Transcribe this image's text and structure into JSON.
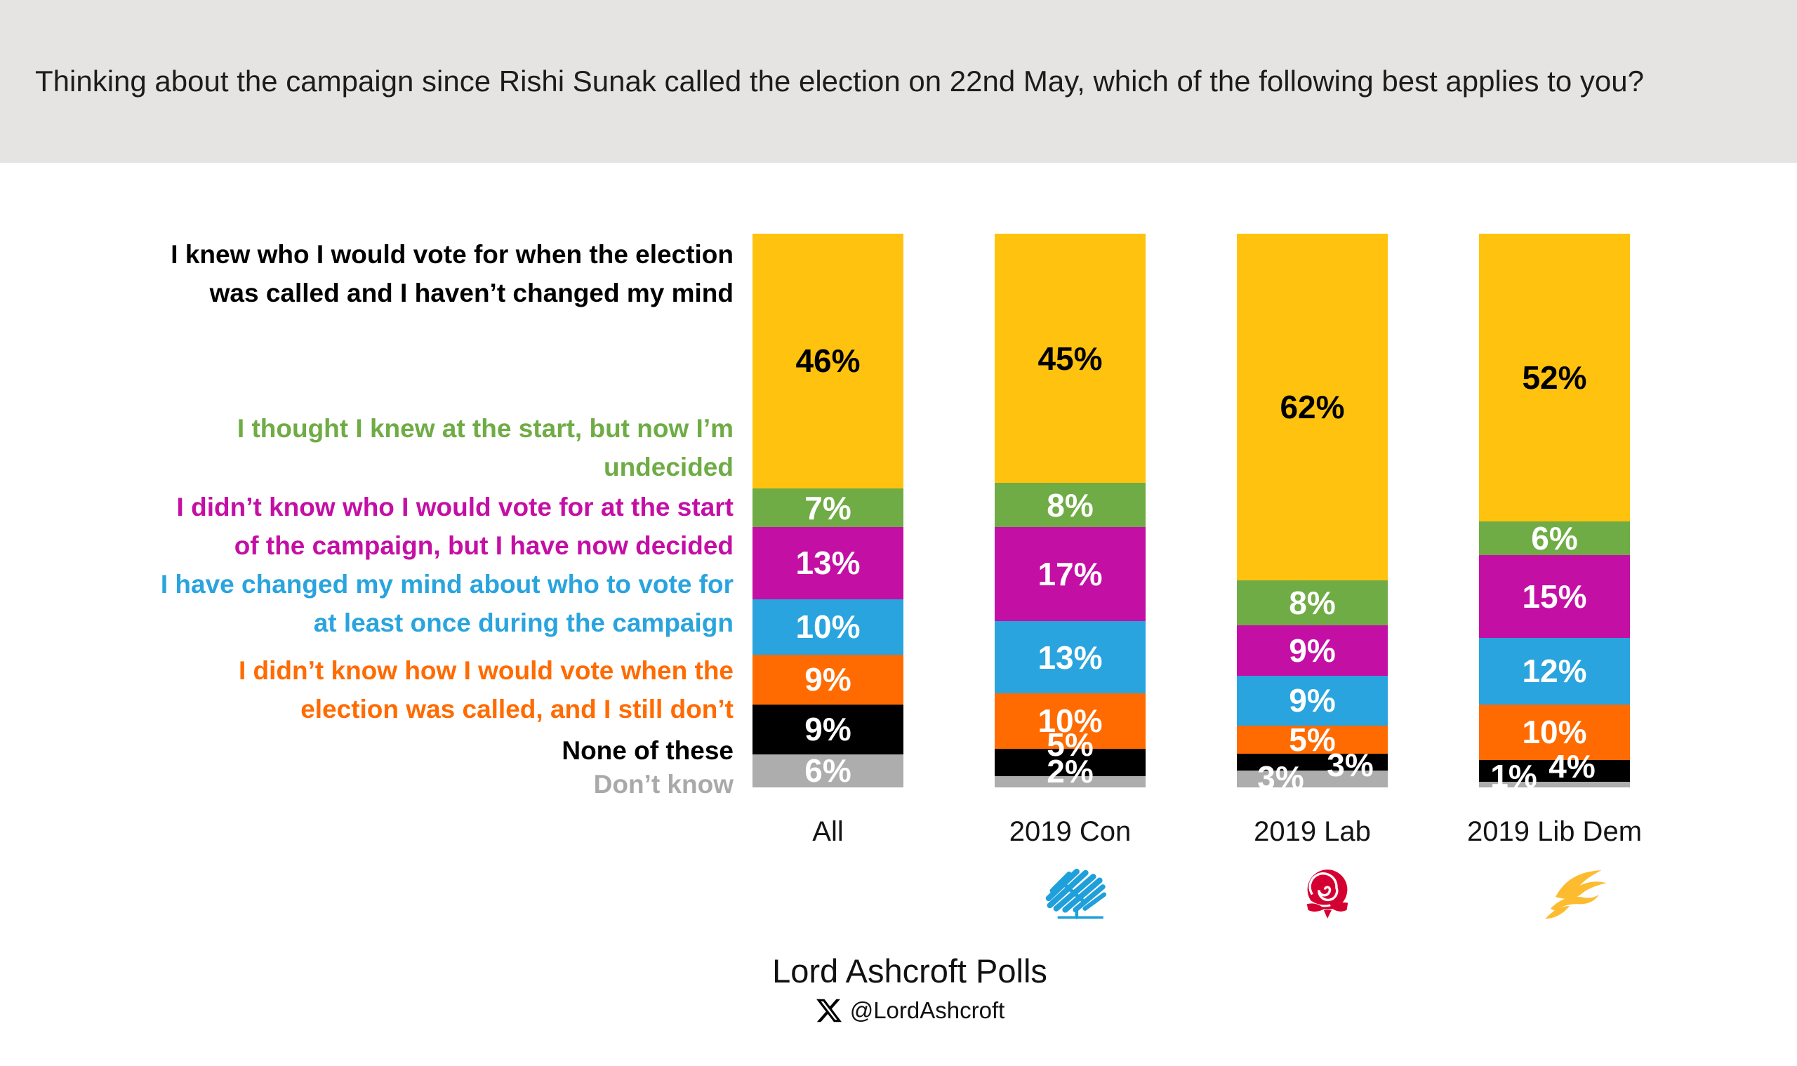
{
  "title": "Thinking about the campaign since Rishi Sunak called the election on 22nd May, which of the following best applies to you?",
  "header": {
    "background": "#E6E4E3"
  },
  "chart_data": {
    "type": "bar",
    "variant": "stacked-column-100",
    "unit": "%",
    "ylim": [
      0,
      100
    ],
    "gridlines": false,
    "value_labels": "inside",
    "legend_position": "left",
    "categories": [
      "All",
      "2019 Con",
      "2019 Lab",
      "2019 Lib Dem"
    ],
    "series": [
      {
        "name": "I knew who I would vote for when the election was called and I haven’t changed my mind",
        "name_lines": [
          "I knew who I would vote for when the election",
          "was called and I haven’t changed my mind"
        ],
        "color": "#FFC20E",
        "label_color": "#000000",
        "value_text_color": "#000000",
        "values": [
          46,
          45,
          62,
          52
        ],
        "display": [
          "46%",
          "45%",
          "62%",
          "52%"
        ]
      },
      {
        "name": "I thought I knew at the start, but now I’m undecided",
        "name_lines": [
          "I thought I knew at the start, but now I’m",
          "undecided"
        ],
        "color": "#6FAC45",
        "label_color": "#6FAC45",
        "value_text_color": "#FFFFFF",
        "values": [
          7,
          8,
          8,
          6
        ],
        "display": [
          "7%",
          "8%",
          "8%",
          "6%"
        ]
      },
      {
        "name": "I didn’t know who I would vote for at the start of the campaign, but I have now decided",
        "name_lines": [
          "I didn’t know who I would vote for at the start",
          "of the campaign, but I have now decided"
        ],
        "color": "#C40FA5",
        "label_color": "#C40FA5",
        "value_text_color": "#FFFFFF",
        "values": [
          13,
          17,
          9,
          15
        ],
        "display": [
          "13%",
          "17%",
          "9%",
          "15%"
        ]
      },
      {
        "name": "I have changed my mind about who to vote for at least once during the campaign",
        "name_lines": [
          "I have changed my mind about who to vote for",
          "at least once during the campaign"
        ],
        "color": "#29A4DE",
        "label_color": "#29A4DE",
        "value_text_color": "#FFFFFF",
        "values": [
          10,
          13,
          9,
          12
        ],
        "display": [
          "10%",
          "13%",
          "9%",
          "12%"
        ]
      },
      {
        "name": "I didn’t know how I would vote when the election was called, and I still don’t",
        "name_lines": [
          "I didn’t know how I would vote when the",
          "election was called, and I still don’t"
        ],
        "color": "#FF6B00",
        "label_color": "#FF6B00",
        "value_text_color": "#FFFFFF",
        "values": [
          9,
          10,
          5,
          10
        ],
        "display": [
          "9%",
          "10%",
          "5%",
          "10%"
        ]
      },
      {
        "name": "None of these",
        "name_lines": [
          "None of these"
        ],
        "color": "#000000",
        "label_color": "#000000",
        "value_text_color": "#FFFFFF",
        "values": [
          9,
          5,
          3,
          4
        ],
        "display": [
          "9%",
          "5%",
          "3%",
          "4%"
        ]
      },
      {
        "name": "Don’t know",
        "name_lines": [
          "Don’t know"
        ],
        "color": "#ADADAD",
        "label_color": "#A9A9A9",
        "value_text_color": "#FFFFFF",
        "values": [
          6,
          2,
          3,
          1
        ],
        "display": [
          "6%",
          "2%",
          "3%",
          "1%"
        ]
      }
    ]
  },
  "party_icons": [
    {
      "category": "2019 Con",
      "icon": "conservative-tree-icon",
      "color": "#1FA0DB"
    },
    {
      "category": "2019 Lab",
      "icon": "labour-rose-icon",
      "color": "#D50032"
    },
    {
      "category": "2019 Lib Dem",
      "icon": "libdem-bird-icon",
      "color": "#FDBB30"
    }
  ],
  "footer": {
    "source": "Lord Ashcroft Polls",
    "x_icon": "x-twitter-icon",
    "handle": "@LordAshcroft"
  }
}
